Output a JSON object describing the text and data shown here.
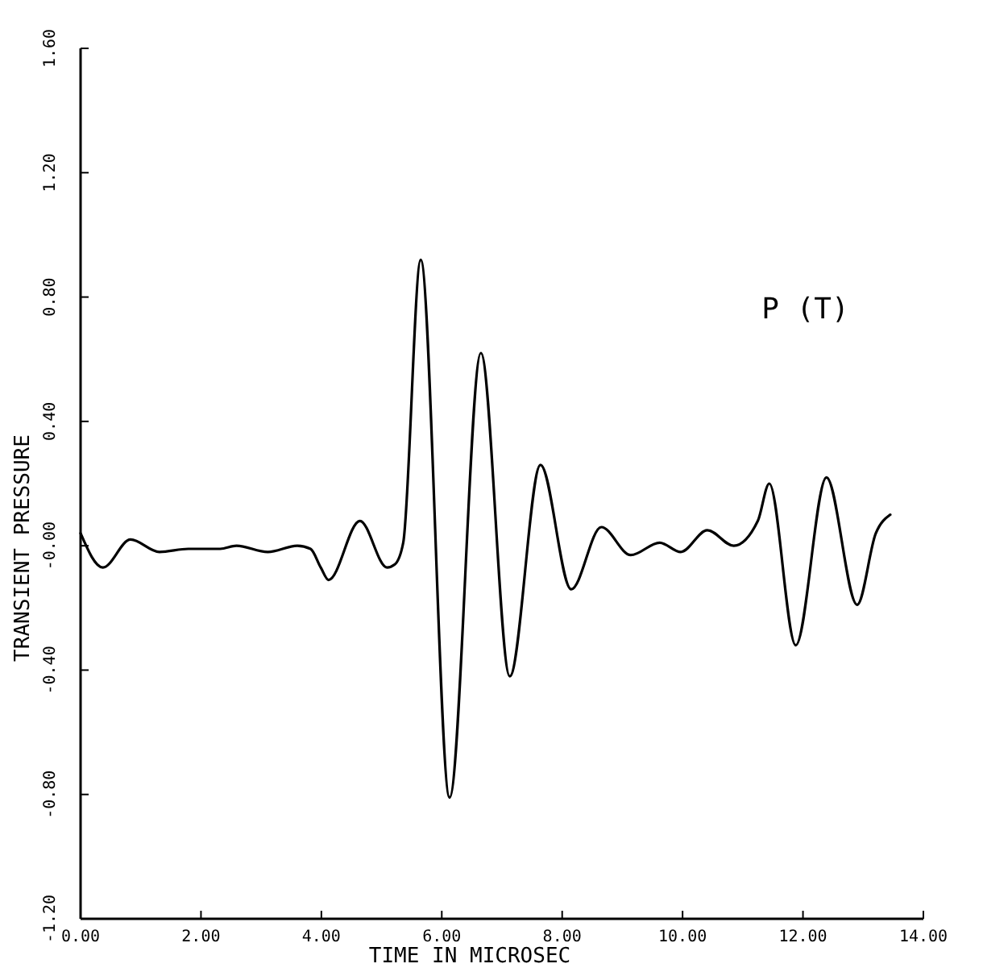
{
  "chart_data": {
    "type": "line",
    "xlabel": "TIME IN MICROSEC",
    "ylabel": "TRANSIENT PRESSURE",
    "xlim": [
      0,
      14
    ],
    "xticks": [
      {
        "value": 0,
        "label": "0.00"
      },
      {
        "value": 2,
        "label": "2.00"
      },
      {
        "value": 4,
        "label": "4.00"
      },
      {
        "value": 6,
        "label": "6.00"
      },
      {
        "value": 8,
        "label": "8.00"
      },
      {
        "value": 10,
        "label": "10.00"
      },
      {
        "value": 12,
        "label": "12.00"
      },
      {
        "value": 14,
        "label": "14.00"
      }
    ],
    "ylim": [
      -1.2,
      1.6
    ],
    "yticks": [
      {
        "value": -1.2,
        "label": "-1.20"
      },
      {
        "value": -0.8,
        "label": "-0.80"
      },
      {
        "value": -0.4,
        "label": "-0.40"
      },
      {
        "value": 0,
        "label": "-0.00"
      },
      {
        "value": 0.4,
        "label": "0.40"
      },
      {
        "value": 0.8,
        "label": "0.80"
      },
      {
        "value": 1.2,
        "label": "1.20"
      },
      {
        "value": 1.6,
        "label": "1.60"
      }
    ],
    "grid": false,
    "legend": "top right",
    "marker": "none",
    "line_style": "solid",
    "x": [
      0,
      0.37,
      0.83,
      1.31,
      1.79,
      2.32,
      2.59,
      3.11,
      3.6,
      3.82,
      3.99,
      4.12,
      4.64,
      5.09,
      5.22,
      5.36,
      5.65,
      6.13,
      6.65,
      7.13,
      7.64,
      8.15,
      8.65,
      9.14,
      9.62,
      9.97,
      10.41,
      10.85,
      11.25,
      11.44,
      11.88,
      12.39,
      12.9,
      13.21,
      13.45
    ],
    "series": [
      {
        "name": "P (T)",
        "color": "#000000",
        "values": [
          0.04,
          -0.07,
          0.02,
          -0.02,
          -0.01,
          -0.01,
          0.0,
          -0.02,
          0.0,
          -0.01,
          -0.07,
          -0.11,
          0.08,
          -0.07,
          -0.06,
          0.01,
          0.92,
          -0.81,
          0.62,
          -0.42,
          0.26,
          -0.14,
          0.06,
          -0.03,
          0.01,
          -0.02,
          0.05,
          0.0,
          0.08,
          0.2,
          -0.32,
          0.22,
          -0.19,
          0.04,
          0.1
        ]
      }
    ]
  }
}
